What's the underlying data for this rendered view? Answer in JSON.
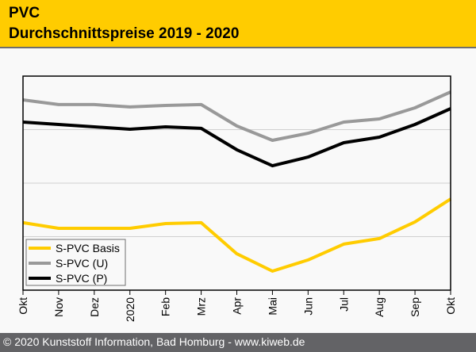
{
  "header": {
    "title": "PVC",
    "subtitle": "Durchschnittspreise 2019 - 2020"
  },
  "footer": {
    "text": "© 2020 Kunststoff Information, Bad Homburg - www.kiweb.de"
  },
  "chart_data": {
    "type": "line",
    "title": "PVC Durchschnittspreise 2019 - 2020",
    "xlabel": "",
    "ylabel": "",
    "y_axis_note": "no y tick labels shown; values are relative index (0-100 of plot height)",
    "ylim": [
      0,
      100
    ],
    "grid": true,
    "gridlines_y": [
      25,
      50,
      75
    ],
    "legend_position": "bottom-left",
    "categories": [
      "Okt",
      "Nov",
      "Dez",
      "2020",
      "Feb",
      "Mrz",
      "Apr",
      "Mai",
      "Jun",
      "Jul",
      "Aug",
      "Sep",
      "Okt"
    ],
    "series": [
      {
        "name": "S-PVC Basis",
        "color": "#ffcc00",
        "values": [
          31.5,
          28.9,
          28.9,
          28.9,
          31.1,
          31.5,
          17.0,
          8.9,
          14.1,
          21.5,
          24.1,
          31.9,
          42.6
        ]
      },
      {
        "name": "S-PVC (U)",
        "color": "#999999",
        "values": [
          88.9,
          86.7,
          86.7,
          85.6,
          86.3,
          86.7,
          76.7,
          70.0,
          73.3,
          78.5,
          80.0,
          85.2,
          92.6
        ]
      },
      {
        "name": "S-PVC (P)",
        "color": "#000000",
        "values": [
          78.5,
          77.4,
          76.3,
          75.2,
          76.3,
          75.6,
          65.6,
          58.1,
          62.2,
          68.9,
          71.5,
          77.4,
          84.8
        ]
      }
    ]
  }
}
